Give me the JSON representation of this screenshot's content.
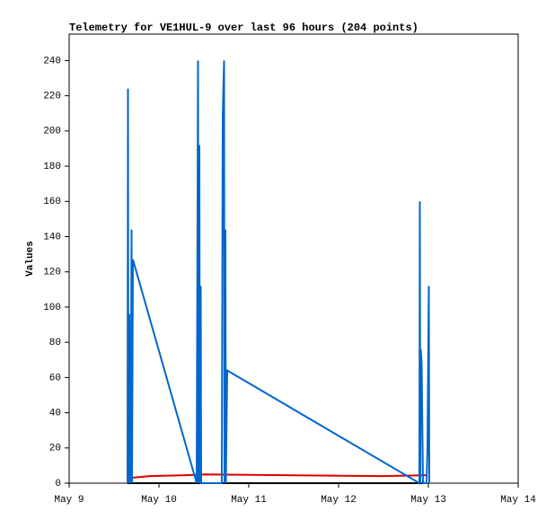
{
  "chart_data": {
    "type": "line",
    "title": "Telemetry for VE1HUL-9 over last 96 hours (204 points)",
    "y_label": "Values",
    "xlim": [
      9,
      14
    ],
    "xticks": [
      {
        "value": 9,
        "label": "May 9"
      },
      {
        "value": 10,
        "label": "May 10"
      },
      {
        "value": 11,
        "label": "May 11"
      },
      {
        "value": 12,
        "label": "May 12"
      },
      {
        "value": 13,
        "label": "May 13"
      },
      {
        "value": 14,
        "label": "May 14"
      }
    ],
    "ylim": [
      0,
      255
    ],
    "yticks": [
      0,
      20,
      40,
      60,
      80,
      100,
      120,
      140,
      160,
      180,
      200,
      220,
      240
    ],
    "series": [
      {
        "color": "#000000",
        "x": [
          9.65,
          12.98
        ],
        "values": [
          0,
          0
        ]
      },
      {
        "color": "#dd0000",
        "x": [
          9.68,
          9.9,
          10.3,
          10.5,
          12.5,
          12.98
        ],
        "values": [
          3,
          4,
          4.5,
          5,
          4,
          4.5
        ]
      },
      {
        "color": "#0066cc",
        "x": [
          9.65,
          9.655,
          9.66,
          9.67,
          9.675,
          9.68,
          9.685,
          9.695,
          9.7,
          9.71,
          10.42,
          10.435,
          10.44,
          10.45,
          10.455,
          10.465,
          10.47,
          10.7,
          10.71,
          10.725,
          10.73,
          10.74,
          10.745,
          10.76,
          12.9,
          12.905,
          12.91,
          12.915,
          12.925,
          12.94,
          12.98,
          12.99,
          13.005,
          13.01
        ],
        "values": [
          0,
          224,
          0,
          96,
          0,
          72,
          0,
          144,
          0,
          127,
          0,
          240,
          0,
          192,
          0,
          112,
          0,
          0,
          208,
          240,
          0,
          144,
          0,
          64,
          0,
          160,
          0,
          76,
          68,
          0,
          0,
          20,
          112,
          0
        ]
      }
    ]
  }
}
